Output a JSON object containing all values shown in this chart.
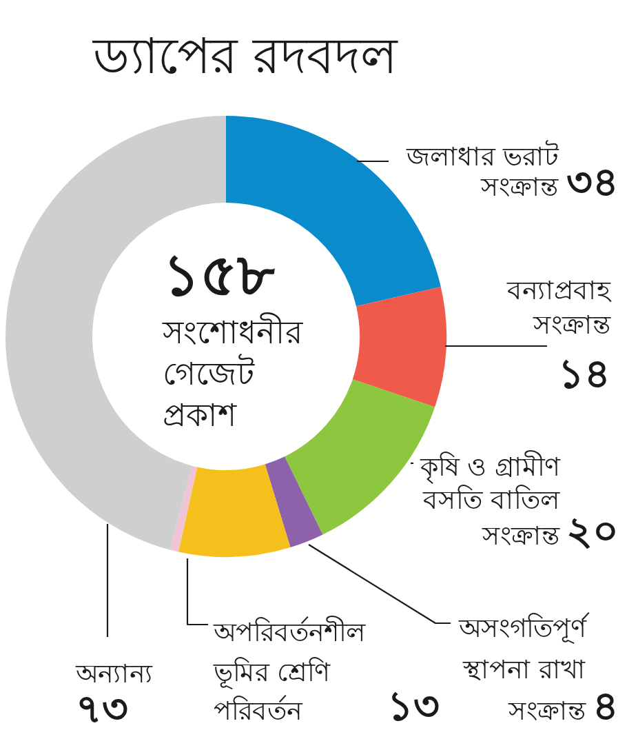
{
  "chart_data": {
    "type": "donut",
    "title": "ড্যাপের রদবদল",
    "categories": [
      "জলাধার ভরাট সংক্রান্ত",
      "বন্যাপ্রবাহ সংক্রান্ত",
      "কৃষি ও গ্রামীণ বসতি বাতিল সংক্রান্ত",
      "অসংগতিপূর্ণ স্থাপনা রাখা সংক্রান্ত",
      "অপরিবর্তনশীল ভূমির শ্রেণি পরিবর্তন",
      null,
      "অন্যান্য"
    ],
    "values": [
      34,
      14,
      20,
      4,
      13,
      1,
      73
    ],
    "value_labels": [
      "৩৪",
      "১৪",
      "২০",
      "৪",
      "১৩",
      null,
      "৭৩"
    ],
    "colors": [
      "#0a8bcb",
      "#ef5a4b",
      "#8dc63f",
      "#8e62ab",
      "#f5bf1c",
      "#f0c4d4",
      "#cdcfd1"
    ],
    "annotations": [
      "১৫৮",
      "সংশোধনীর গেজেট প্রকাশ"
    ]
  }
}
